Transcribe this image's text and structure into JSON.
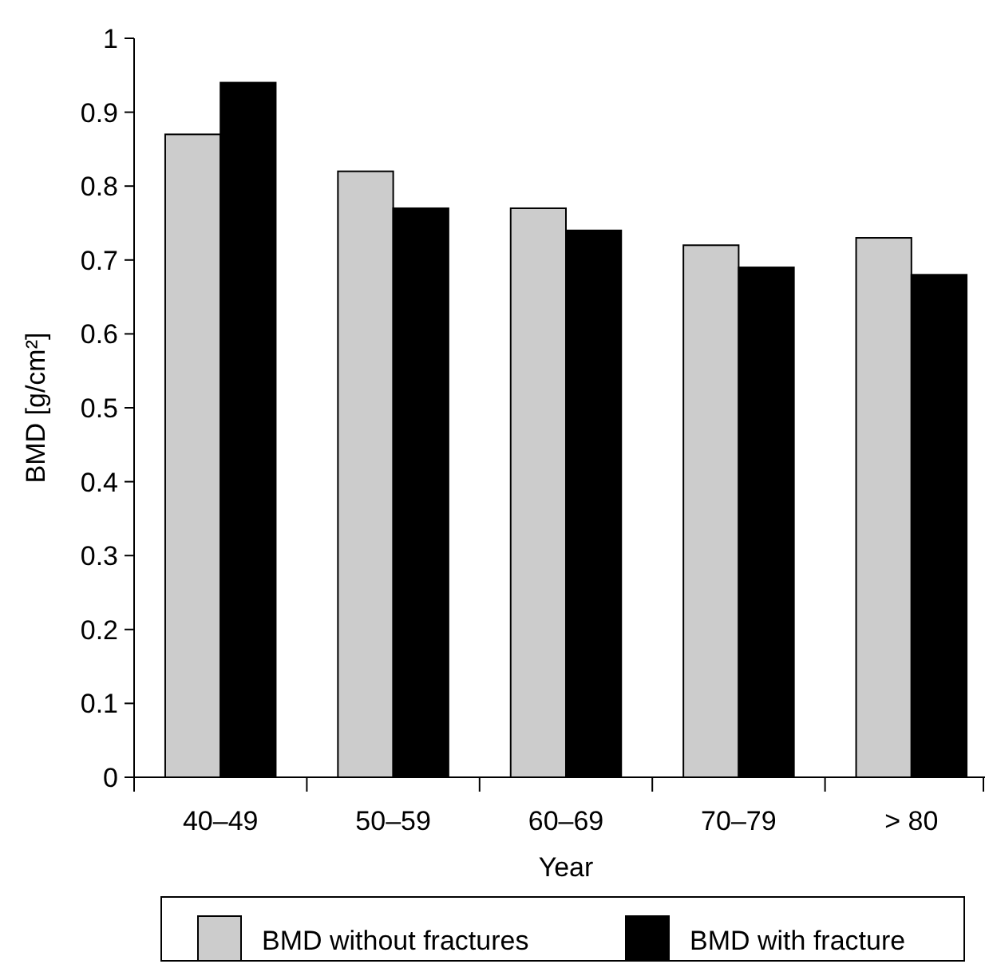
{
  "chart_data": {
    "type": "bar",
    "xlabel": "Year",
    "ylabel": "BMD [g/cm²]",
    "categories": [
      "40–49",
      "50–59",
      "60–69",
      "70–79",
      "> 80"
    ],
    "series": [
      {
        "name": "BMD without fractures",
        "color": "#cccccc",
        "values": [
          0.87,
          0.82,
          0.77,
          0.72,
          0.73
        ]
      },
      {
        "name": "BMD with fracture",
        "color": "#000000",
        "values": [
          0.94,
          0.77,
          0.74,
          0.69,
          0.68
        ]
      }
    ],
    "ylim": [
      0,
      1
    ],
    "yticks": [
      0,
      0.1,
      0.2,
      0.3,
      0.4,
      0.5,
      0.6,
      0.7,
      0.8,
      0.9,
      1
    ],
    "grid": false,
    "legend": "bottom"
  }
}
